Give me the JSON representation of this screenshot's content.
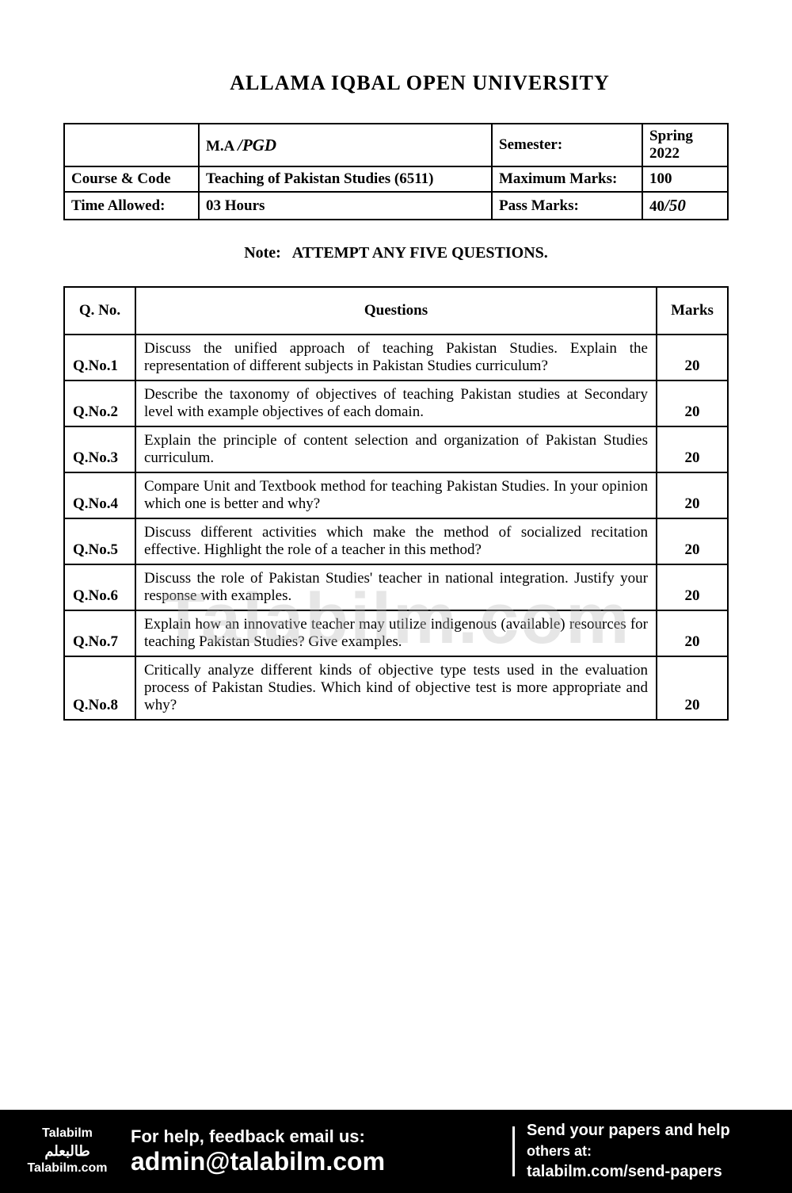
{
  "header": {
    "title": "ALLAMA IQBAL OPEN UNIVERSITY"
  },
  "info": {
    "degree_label": "M.A",
    "degree_handwritten": "/PGD",
    "semester_label": "Semester:",
    "semester_value": "Spring 2022",
    "course_label": "Course & Code",
    "course_value": "Teaching of Pakistan Studies (6511)",
    "max_marks_label": "Maximum Marks:",
    "max_marks_value": "100",
    "time_label": "Time Allowed:",
    "time_value": "03 Hours",
    "pass_label": "Pass Marks:",
    "pass_value_printed": "40",
    "pass_value_hand": "/50"
  },
  "note": {
    "prefix": "Note:",
    "text": "ATTEMPT ANY FIVE QUESTIONS."
  },
  "table_headers": {
    "qno": "Q. No.",
    "questions": "Questions",
    "marks": "Marks"
  },
  "questions": [
    {
      "no": "Q.No.1",
      "text": "Discuss the unified approach of teaching Pakistan Studies. Explain the representation of different subjects in Pakistan Studies curriculum?",
      "marks": "20"
    },
    {
      "no": "Q.No.2",
      "text": "Describe the taxonomy of objectives of teaching Pakistan studies at Secondary level with example objectives of each domain.",
      "marks": "20"
    },
    {
      "no": "Q.No.3",
      "text": "Explain the principle of content selection and organization of Pakistan Studies curriculum.",
      "marks": "20"
    },
    {
      "no": "Q.No.4",
      "text": "Compare Unit and Textbook method for teaching Pakistan Studies. In your opinion which one is better and why?",
      "marks": "20"
    },
    {
      "no": "Q.No.5",
      "text": "Discuss different activities which make the method of socialized recitation effective. Highlight the role of a teacher in this method?",
      "marks": "20"
    },
    {
      "no": "Q.No.6",
      "text": "Discuss the role of Pakistan Studies' teacher in national integration. Justify your response with examples.",
      "marks": "20"
    },
    {
      "no": "Q.No.7",
      "text": "Explain how an innovative teacher may utilize indigenous (available) resources for teaching Pakistan Studies? Give examples.",
      "marks": "20"
    },
    {
      "no": "Q.No.8",
      "text": "Critically analyze different kinds of objective type tests used in the evaluation process of Pakistan Studies. Which kind of objective test is more appropriate and why?",
      "marks": "20"
    }
  ],
  "watermark": "Talabilm.com",
  "footer": {
    "brand_en": "Talabilm",
    "brand_urdu": "طالبعلم",
    "brand_site": "Talabilm.com",
    "help_line1": "For help, feedback email us:",
    "help_line2": "admin@talabilm.com",
    "send_line1": "Send your papers and help",
    "send_line2": "others at:",
    "send_line3": "talabilm.com/send-papers"
  }
}
